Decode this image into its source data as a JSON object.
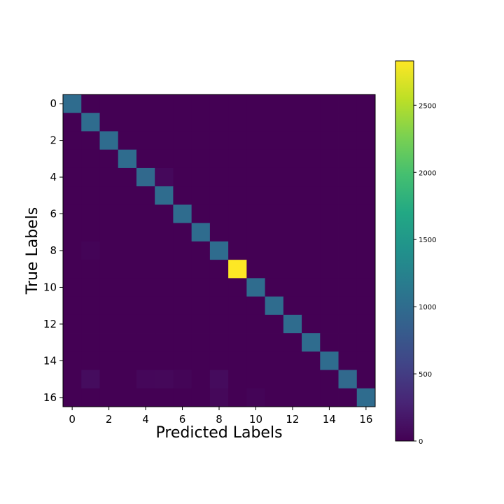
{
  "chart_data": {
    "type": "heatmap",
    "title": "",
    "xlabel": "Predicted Labels",
    "ylabel": "True Labels",
    "x_ticks": [
      0,
      2,
      4,
      6,
      8,
      10,
      12,
      14,
      16
    ],
    "y_ticks": [
      0,
      2,
      4,
      6,
      8,
      10,
      12,
      14,
      16
    ],
    "size": 17,
    "colorscale": "viridis",
    "colorbar": {
      "min": 0,
      "max": 2830,
      "ticks": [
        0,
        500,
        1000,
        1500,
        2000,
        2500
      ]
    },
    "diagonal": [
      1000,
      1000,
      1000,
      1000,
      960,
      1000,
      1000,
      1000,
      1000,
      2830,
      1000,
      1000,
      1000,
      1000,
      1000,
      960,
      1000
    ],
    "off_diagonal": [
      {
        "row": 4,
        "col": 5,
        "value": 60
      },
      {
        "row": 8,
        "col": 1,
        "value": 25
      },
      {
        "row": 15,
        "col": 1,
        "value": 90
      },
      {
        "row": 15,
        "col": 4,
        "value": 50
      },
      {
        "row": 15,
        "col": 5,
        "value": 55
      },
      {
        "row": 15,
        "col": 6,
        "value": 30
      },
      {
        "row": 15,
        "col": 8,
        "value": 80
      },
      {
        "row": 16,
        "col": 8,
        "value": 55
      },
      {
        "row": 16,
        "col": 10,
        "value": 25
      }
    ]
  }
}
